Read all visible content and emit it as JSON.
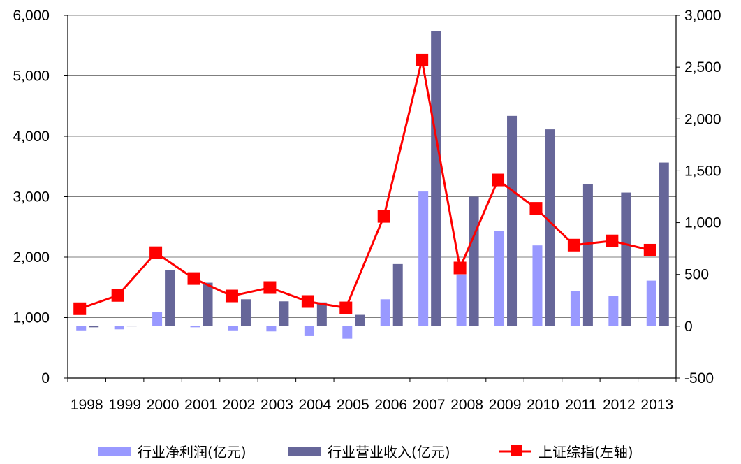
{
  "chart_data": {
    "type": "bar",
    "categories": [
      "1998",
      "1999",
      "2000",
      "2001",
      "2002",
      "2003",
      "2004",
      "2005",
      "2006",
      "2007",
      "2008",
      "2009",
      "2010",
      "2011",
      "2012",
      "2013"
    ],
    "series": [
      {
        "name": "行业净利润(亿元)",
        "type": "bar",
        "axis": "right",
        "color": "#9999ff",
        "values": [
          -40,
          -30,
          140,
          -10,
          -40,
          -50,
          -95,
          -120,
          260,
          1300,
          500,
          920,
          780,
          340,
          290,
          440
        ]
      },
      {
        "name": "行业营业收入(亿元)",
        "type": "bar",
        "axis": "right",
        "color": "#666699",
        "values": [
          -10,
          5,
          540,
          420,
          260,
          240,
          230,
          110,
          600,
          2850,
          1250,
          2030,
          1900,
          1370,
          1290,
          1580
        ]
      },
      {
        "name": "上证综指(左轴)",
        "type": "line",
        "axis": "left",
        "color": "#ff0000",
        "marker": "square",
        "values": [
          1147,
          1367,
          2073,
          1646,
          1358,
          1497,
          1266,
          1161,
          2675,
          5261,
          1821,
          3277,
          2808,
          2199,
          2269,
          2116
        ]
      }
    ],
    "left_axis": {
      "min": 0,
      "max": 6000,
      "ticks": [
        "0",
        "1,000",
        "2,000",
        "3,000",
        "4,000",
        "5,000",
        "6,000"
      ]
    },
    "right_axis": {
      "min": -500,
      "max": 3000,
      "ticks": [
        "-500",
        "0",
        "500",
        "1,000",
        "1,500",
        "2,000",
        "2,500",
        "3,000"
      ]
    },
    "grid": true,
    "legend_position": "bottom"
  }
}
